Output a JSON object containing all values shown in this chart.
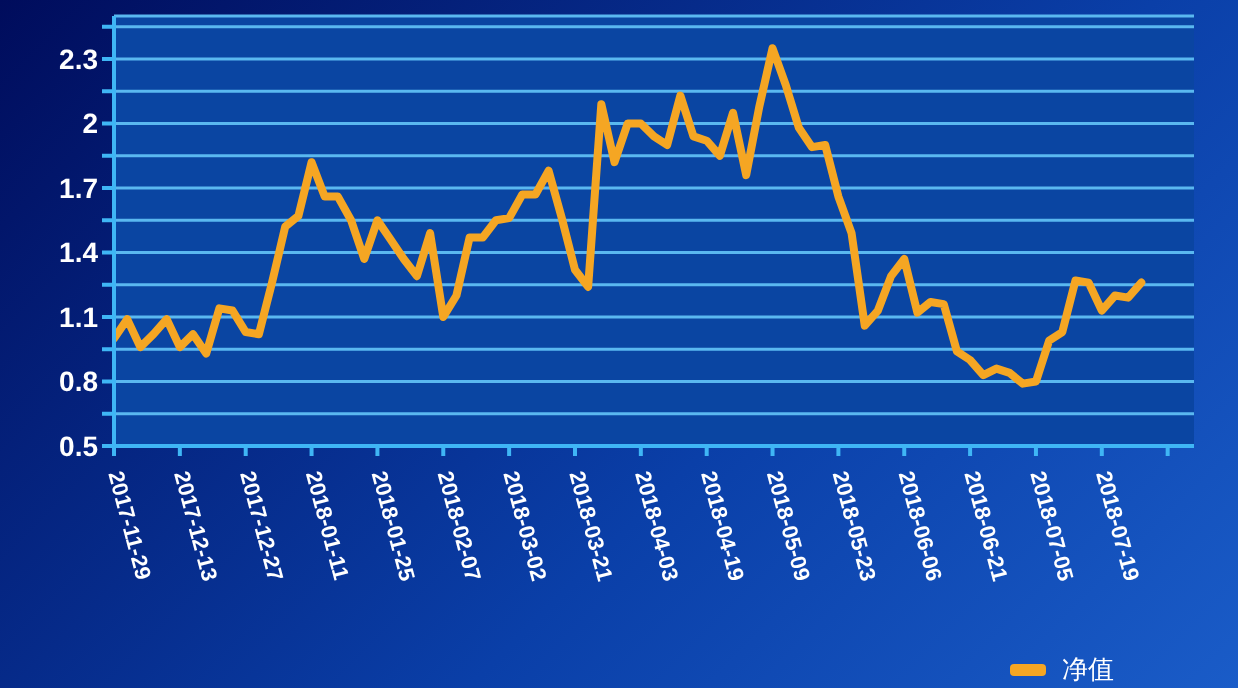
{
  "chart_data": {
    "type": "line",
    "categories": [
      "2017-11-29",
      null,
      null,
      null,
      null,
      "2017-12-13",
      null,
      null,
      null,
      null,
      "2017-12-27",
      null,
      null,
      null,
      null,
      "2018-01-11",
      null,
      null,
      null,
      null,
      "2018-01-25",
      null,
      null,
      null,
      null,
      "2018-02-07",
      null,
      null,
      null,
      null,
      "2018-03-02",
      null,
      null,
      null,
      null,
      "2018-03-21",
      null,
      null,
      null,
      null,
      "2018-04-03",
      null,
      null,
      null,
      null,
      "2018-04-19",
      null,
      null,
      null,
      null,
      "2018-05-09",
      null,
      null,
      null,
      null,
      "2018-05-23",
      null,
      null,
      null,
      null,
      "2018-06-06",
      null,
      null,
      null,
      null,
      "2018-06-21",
      null,
      null,
      null,
      null,
      "2018-07-05",
      null,
      null,
      null,
      null,
      "2018-07-19",
      null,
      null,
      null,
      null,
      null,
      null
    ],
    "series": [
      {
        "name": "净值",
        "color": "#f5a623",
        "values": [
          1.0,
          1.09,
          0.96,
          1.02,
          1.09,
          0.96,
          1.02,
          0.93,
          1.14,
          1.13,
          1.03,
          1.02,
          1.26,
          1.52,
          1.57,
          1.82,
          1.66,
          1.66,
          1.55,
          1.37,
          1.55,
          1.46,
          1.37,
          1.29,
          1.49,
          1.1,
          1.2,
          1.47,
          1.47,
          1.55,
          1.56,
          1.67,
          1.67,
          1.78,
          1.56,
          1.32,
          1.24,
          2.09,
          1.82,
          2.0,
          2.0,
          1.94,
          1.9,
          2.13,
          1.94,
          1.92,
          1.85,
          2.05,
          1.76,
          2.08,
          2.35,
          2.18,
          1.98,
          1.89,
          1.9,
          1.66,
          1.49,
          1.06,
          1.13,
          1.29,
          1.37,
          1.12,
          1.17,
          1.16,
          0.94,
          0.9,
          0.83,
          0.86,
          0.84,
          0.79,
          0.8,
          0.99,
          1.03,
          1.27,
          1.26,
          1.13,
          1.2,
          1.19,
          1.26,
          null,
          null,
          null
        ]
      }
    ],
    "ylim": [
      0.5,
      2.5
    ],
    "yticks": [
      0.5,
      {
        "value": 0.65,
        "label": null
      },
      0.8,
      {
        "value": 0.95,
        "label": null
      },
      1.1,
      {
        "value": 1.25,
        "label": null
      },
      1.4,
      {
        "value": 1.55,
        "label": null
      },
      1.7,
      {
        "value": 1.85,
        "label": null
      },
      2,
      {
        "value": 2.15,
        "label": null
      },
      2.3,
      {
        "value": 2.45,
        "label": null
      }
    ],
    "grid": "y",
    "legend": "bottom right",
    "marker": "none",
    "line_style": "solid"
  }
}
